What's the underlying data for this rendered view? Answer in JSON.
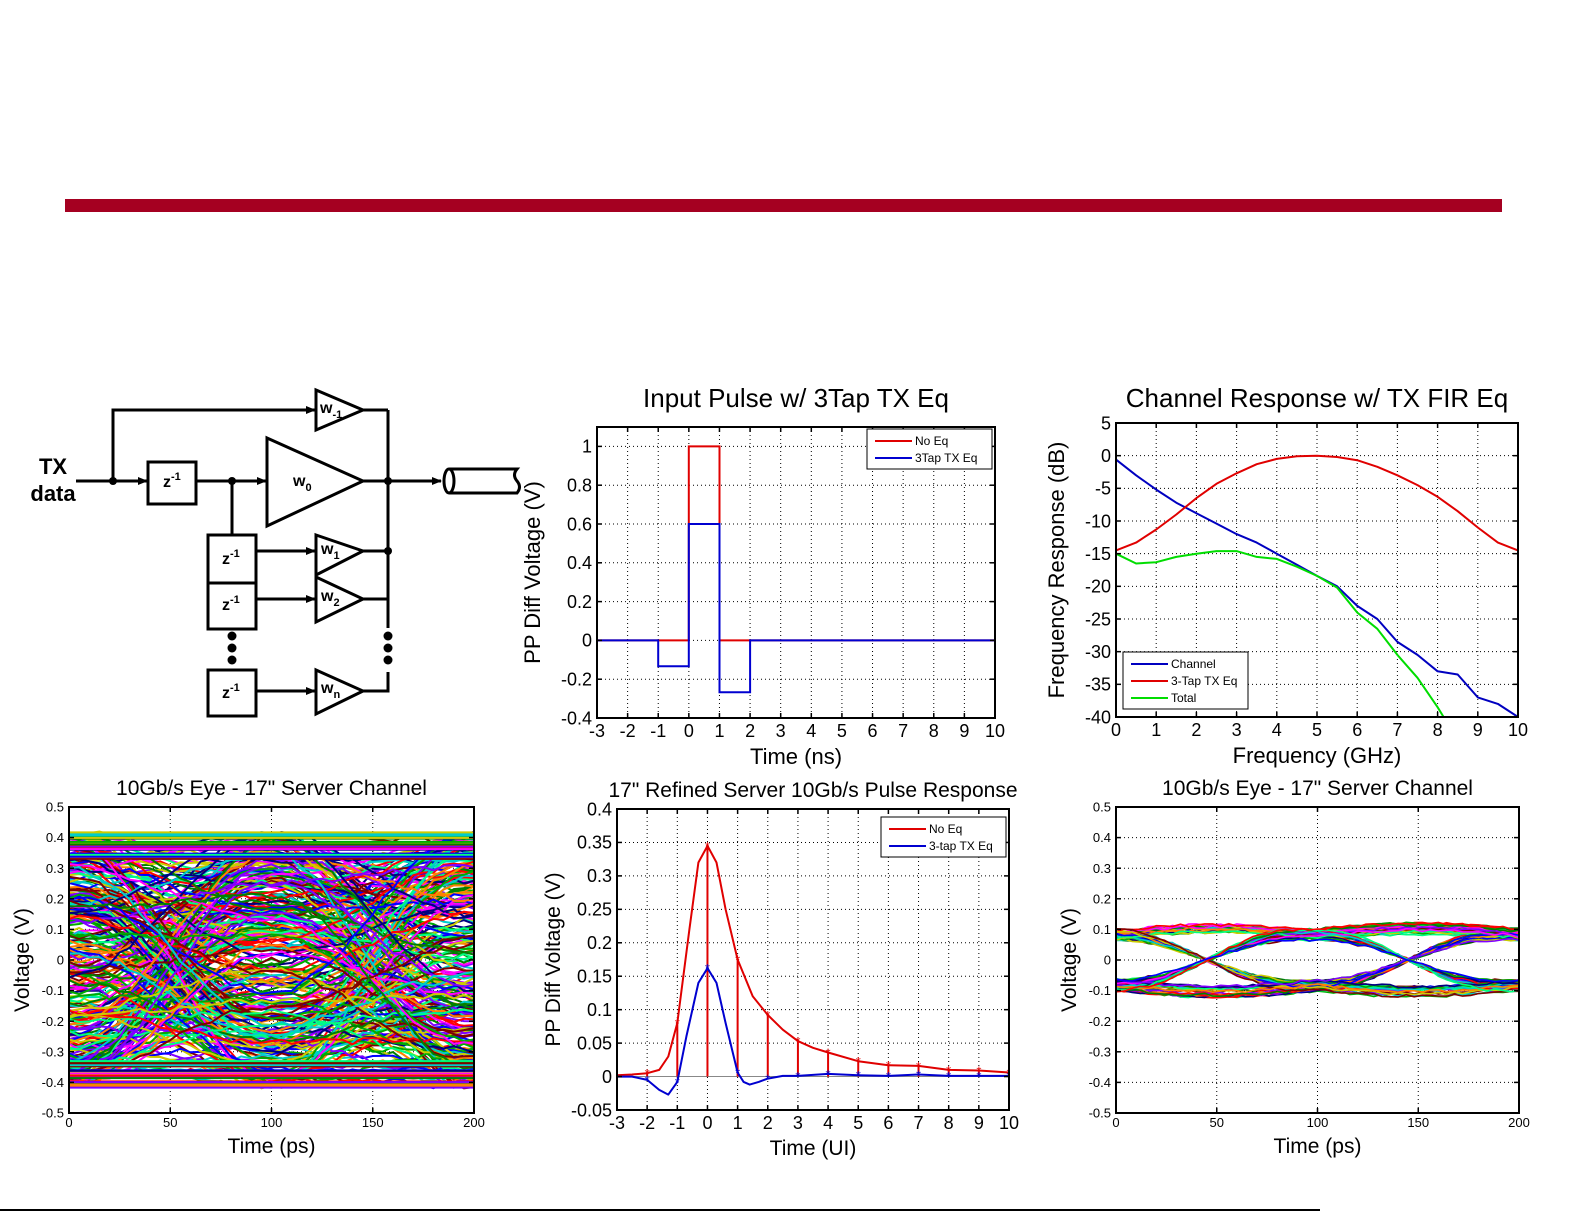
{
  "slide": {
    "accent_color": "#a50021"
  },
  "diagram": {
    "input_label_line1": "TX",
    "input_label_line2": "data",
    "delay_label": "z",
    "delay_exp": "-1",
    "taps": [
      {
        "label": "w",
        "sub": "-1"
      },
      {
        "label": "w",
        "sub": "0"
      },
      {
        "label": "w",
        "sub": "1"
      },
      {
        "label": "w",
        "sub": "2"
      },
      {
        "label": "w",
        "sub": "n"
      }
    ],
    "output": "channel-cable-icon"
  },
  "chart_data": [
    {
      "id": "input_pulse",
      "type": "line",
      "title": "Input Pulse w/ 3Tap TX Eq",
      "xlabel": "Time (ns)",
      "ylabel": "PP Diff Voltage (V)",
      "xlim": [
        -3,
        10
      ],
      "ylim": [
        -0.4,
        1.1
      ],
      "xticks": [
        -3,
        -2,
        -1,
        0,
        1,
        2,
        3,
        4,
        5,
        6,
        7,
        8,
        9,
        10
      ],
      "yticks": [
        -0.4,
        -0.2,
        0,
        0.2,
        0.4,
        0.6,
        0.8,
        1
      ],
      "ytick_labels": [
        "-0.4",
        "-0.2",
        "0",
        "0.2",
        "0.4",
        "0.6",
        "0.8",
        "1"
      ],
      "grid": true,
      "legend_position": "top-right",
      "series": [
        {
          "name": "No Eq",
          "color": "#e00000",
          "x": [
            -3,
            -1,
            -1,
            0,
            0,
            1,
            1,
            2,
            2,
            10
          ],
          "y": [
            0,
            0,
            0,
            0,
            1,
            1,
            0,
            0,
            0,
            0
          ]
        },
        {
          "name": "3Tap TX Eq",
          "color": "#0000d0",
          "x": [
            -3,
            -1,
            -1,
            0,
            0,
            1,
            1,
            2,
            2,
            10
          ],
          "y": [
            0,
            0,
            -0.133,
            -0.133,
            0.6,
            0.6,
            -0.267,
            -0.267,
            0,
            0
          ]
        }
      ]
    },
    {
      "id": "channel_response",
      "type": "line",
      "title": "Channel Response w/ TX FIR Eq",
      "xlabel": "Frequency (GHz)",
      "ylabel": "Frequency Response (dB)",
      "xlim": [
        0,
        10
      ],
      "ylim": [
        -40,
        5
      ],
      "xticks": [
        0,
        1,
        2,
        3,
        4,
        5,
        6,
        7,
        8,
        9,
        10
      ],
      "yticks": [
        -40,
        -35,
        -30,
        -25,
        -20,
        -15,
        -10,
        -5,
        0,
        5
      ],
      "grid": true,
      "legend_position": "bottom-left",
      "series": [
        {
          "name": "Channel",
          "color": "#0000c0",
          "x": [
            0,
            0.5,
            1,
            1.5,
            2,
            2.5,
            3,
            3.5,
            4,
            4.5,
            5,
            5.5,
            6,
            6.5,
            7,
            7.5,
            8,
            8.5,
            9,
            9.5,
            10
          ],
          "y": [
            -0.6,
            -3,
            -5.2,
            -7.2,
            -8.8,
            -10.4,
            -12,
            -13.3,
            -15,
            -16.7,
            -18.4,
            -20,
            -23,
            -25,
            -28.5,
            -30.5,
            -33,
            -33.5,
            -37,
            -38,
            -40
          ]
        },
        {
          "name": "3-Tap TX Eq",
          "color": "#e00000",
          "x": [
            0,
            0.5,
            1,
            1.5,
            2,
            2.5,
            3,
            3.5,
            4,
            4.5,
            5,
            5.5,
            6,
            6.5,
            7,
            7.5,
            8,
            8.5,
            9,
            9.5,
            10
          ],
          "y": [
            -14.5,
            -13.3,
            -11.3,
            -9,
            -6.5,
            -4.3,
            -2.7,
            -1.3,
            -0.5,
            -0.1,
            0,
            -0.2,
            -0.7,
            -1.7,
            -3,
            -4.5,
            -6.3,
            -8.5,
            -11,
            -13.3,
            -14.5
          ]
        },
        {
          "name": "Total",
          "color": "#00dd00",
          "x": [
            0,
            0.5,
            1,
            1.5,
            2,
            2.5,
            3,
            3.5,
            4,
            4.5,
            5,
            5.5,
            6,
            6.5,
            7,
            7.5,
            8,
            8.15
          ],
          "y": [
            -15,
            -16.5,
            -16.3,
            -15.5,
            -15,
            -14.6,
            -14.6,
            -15.5,
            -15.8,
            -17,
            -18.4,
            -20.2,
            -24,
            -26.5,
            -30.5,
            -34,
            -38.5,
            -40
          ]
        }
      ]
    },
    {
      "id": "eye_unequalized",
      "type": "line",
      "title": "10Gb/s Eye - 17\" Server Channel",
      "xlabel": "Time (ps)",
      "ylabel": "Voltage (V)",
      "xlim": [
        0,
        200
      ],
      "ylim": [
        -0.5,
        0.5
      ],
      "xticks": [
        0,
        50,
        100,
        150,
        200
      ],
      "yticks": [
        -0.5,
        -0.4,
        -0.3,
        -0.2,
        -0.1,
        0,
        0.1,
        0.2,
        0.3,
        0.4,
        0.5
      ],
      "grid": true,
      "note": "Closed eye: dense multi-colored traces spanning approx -0.42 V to +0.42 V",
      "envelope": {
        "max": 0.42,
        "min": -0.42
      }
    },
    {
      "id": "pulse_response",
      "type": "line",
      "title": "17\" Refined Server 10Gb/s Pulse Response",
      "xlabel": "Time (UI)",
      "ylabel": "PP Diff Voltage (V)",
      "xlim": [
        -3,
        10
      ],
      "ylim": [
        -0.05,
        0.4
      ],
      "xticks": [
        -3,
        -2,
        -1,
        0,
        1,
        2,
        3,
        4,
        5,
        6,
        7,
        8,
        9,
        10
      ],
      "yticks": [
        -0.05,
        0,
        0.05,
        0.1,
        0.15,
        0.2,
        0.25,
        0.3,
        0.35,
        0.4
      ],
      "grid": true,
      "legend_position": "top-right",
      "series": [
        {
          "name": "No Eq",
          "color": "#e00000",
          "x": [
            -3,
            -2.5,
            -2,
            -1.6,
            -1.3,
            -1,
            -0.6,
            -0.3,
            0,
            0.3,
            0.6,
            1,
            1.5,
            2,
            2.5,
            3,
            3.5,
            4,
            5,
            6,
            7,
            8,
            9,
            10
          ],
          "y": [
            0.002,
            0.003,
            0.005,
            0.01,
            0.03,
            0.08,
            0.22,
            0.32,
            0.345,
            0.32,
            0.25,
            0.175,
            0.12,
            0.092,
            0.07,
            0.053,
            0.043,
            0.036,
            0.023,
            0.017,
            0.016,
            0.01,
            0.009,
            0.006
          ],
          "samples_x": [
            -2,
            -1,
            0,
            1,
            2,
            3,
            4,
            5,
            6,
            7,
            8,
            9,
            10
          ],
          "samples_y": [
            0.005,
            0.08,
            0.345,
            0.175,
            0.092,
            0.053,
            0.036,
            0.023,
            0.017,
            0.016,
            0.01,
            0.009,
            0.006
          ]
        },
        {
          "name": "3-tap TX Eq",
          "color": "#0000d0",
          "x": [
            -3,
            -2.5,
            -2,
            -1.6,
            -1.3,
            -1,
            -0.7,
            -0.3,
            0,
            0.3,
            0.6,
            1,
            1.2,
            1.4,
            1.7,
            2,
            2.5,
            3,
            4,
            5,
            6,
            7,
            8,
            9,
            10
          ],
          "y": [
            0,
            0,
            -0.005,
            -0.02,
            -0.027,
            -0.008,
            0.06,
            0.14,
            0.162,
            0.14,
            0.08,
            0.006,
            -0.008,
            -0.012,
            -0.008,
            -0.003,
            0.001,
            0.001,
            0.004,
            0.002,
            0.001,
            0.003,
            0.001,
            0.001,
            0.001
          ],
          "samples_x": [
            -2,
            -1,
            0,
            1,
            2,
            3,
            4,
            5,
            6,
            7,
            8,
            9,
            10
          ],
          "samples_y": [
            -0.005,
            -0.008,
            0.162,
            0.006,
            -0.003,
            0.001,
            0.004,
            0.002,
            0.001,
            0.003,
            0.001,
            0.001,
            0.001
          ]
        }
      ]
    },
    {
      "id": "eye_equalized",
      "type": "line",
      "title": "10Gb/s Eye - 17\" Server Channel",
      "xlabel": "Time (ps)",
      "ylabel": "Voltage (V)",
      "xlim": [
        0,
        200
      ],
      "ylim": [
        -0.5,
        0.5
      ],
      "xticks": [
        0,
        50,
        100,
        150,
        200
      ],
      "yticks": [
        -0.5,
        -0.4,
        -0.3,
        -0.2,
        -0.1,
        0,
        0.1,
        0.2,
        0.3,
        0.4,
        0.5
      ],
      "grid": true,
      "note": "Open eye with crossings near 45 ps and 145 ps; levels approx +/-0.08 V, envelope +/-0.12 V",
      "envelope": {
        "max": 0.12,
        "min": -0.12,
        "crossings_ps": [
          45,
          145
        ]
      }
    }
  ]
}
